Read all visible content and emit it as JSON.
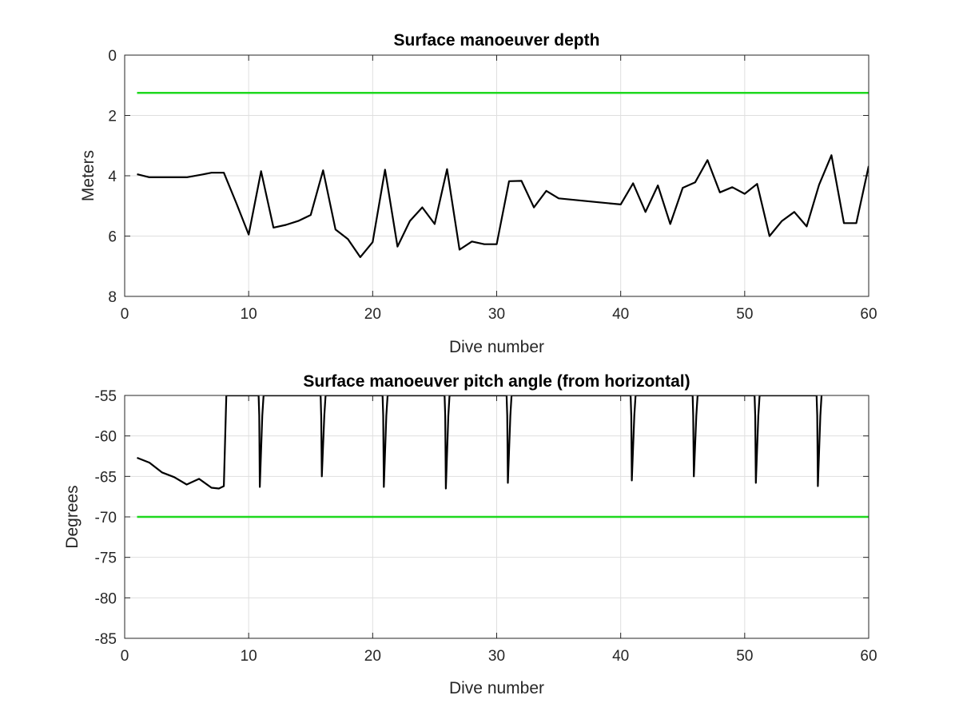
{
  "chart_data": [
    {
      "type": "line",
      "title": "Surface manoeuver depth",
      "xlabel": "Dive number",
      "ylabel": "Meters",
      "xlim": [
        0,
        60
      ],
      "ylim": [
        0,
        8
      ],
      "y_reversed": true,
      "xticks": [
        "0",
        "10",
        "20",
        "30",
        "40",
        "50",
        "60"
      ],
      "yticks": [
        "0",
        "2",
        "4",
        "6",
        "8"
      ],
      "grid": true,
      "series": [
        {
          "color": "#000000",
          "points": [
            [
              1,
              3.95
            ],
            [
              2,
              4.05
            ],
            [
              3,
              4.05
            ],
            [
              4,
              4.05
            ],
            [
              5,
              4.05
            ],
            [
              6,
              3.98
            ],
            [
              7,
              3.9
            ],
            [
              8,
              3.9
            ],
            [
              9,
              4.9
            ],
            [
              10,
              5.95
            ],
            [
              11,
              3.85
            ],
            [
              12,
              5.72
            ],
            [
              13,
              5.63
            ],
            [
              14,
              5.5
            ],
            [
              15,
              5.3
            ],
            [
              16,
              3.82
            ],
            [
              17,
              5.78
            ],
            [
              18,
              6.1
            ],
            [
              19,
              6.7
            ],
            [
              20,
              6.2
            ],
            [
              21,
              3.8
            ],
            [
              22,
              6.35
            ],
            [
              23,
              5.5
            ],
            [
              24,
              5.05
            ],
            [
              25,
              5.6
            ],
            [
              26,
              3.78
            ],
            [
              27,
              6.45
            ],
            [
              28,
              6.18
            ],
            [
              29,
              6.27
            ],
            [
              30,
              6.27
            ],
            [
              31,
              4.18
            ],
            [
              32,
              4.17
            ],
            [
              33,
              5.05
            ],
            [
              34,
              4.5
            ],
            [
              35,
              4.75
            ],
            [
              40,
              4.95
            ],
            [
              41,
              4.25
            ],
            [
              42,
              5.2
            ],
            [
              43,
              4.32
            ],
            [
              44,
              5.6
            ],
            [
              45,
              4.4
            ],
            [
              46,
              4.22
            ],
            [
              47,
              3.48
            ],
            [
              48,
              4.55
            ],
            [
              49,
              4.38
            ],
            [
              50,
              4.6
            ],
            [
              51,
              4.27
            ],
            [
              52,
              6.0
            ],
            [
              53,
              5.5
            ],
            [
              54,
              5.2
            ],
            [
              55,
              5.68
            ],
            [
              56,
              4.3
            ],
            [
              57,
              3.32
            ],
            [
              58,
              5.57
            ],
            [
              59,
              5.57
            ],
            [
              60,
              3.68
            ]
          ]
        },
        {
          "color": "#1ed81e",
          "points": [
            [
              1,
              1.25
            ],
            [
              60,
              1.25
            ]
          ]
        }
      ]
    },
    {
      "type": "line",
      "title": "Surface manoeuver pitch angle (from horizontal)",
      "xlabel": "Dive number",
      "ylabel": "Degrees",
      "xlim": [
        0,
        60
      ],
      "ylim": [
        -85,
        -55
      ],
      "xticks": [
        "0",
        "10",
        "20",
        "30",
        "40",
        "50",
        "60"
      ],
      "yticks": [
        "-55",
        "-60",
        "-65",
        "-70",
        "-75",
        "-80",
        "-85"
      ],
      "grid": true,
      "series": [
        {
          "color": "#000000",
          "points": [
            [
              1,
              -62.7
            ],
            [
              2,
              -63.3
            ],
            [
              3,
              -64.5
            ],
            [
              4,
              -65.1
            ],
            [
              5,
              -66
            ],
            [
              6,
              -65.3
            ],
            [
              7,
              -66.4
            ],
            [
              7.6,
              -66.5
            ],
            [
              8,
              -66.2
            ],
            [
              8.2,
              -55
            ],
            [
              10.8,
              -55
            ],
            [
              10.85,
              -57.5
            ],
            [
              10.9,
              -66.3
            ],
            [
              11.1,
              -57.5
            ],
            [
              11.2,
              -55
            ],
            [
              15.8,
              -55
            ],
            [
              15.85,
              -57.5
            ],
            [
              15.9,
              -65
            ],
            [
              16.1,
              -57.5
            ],
            [
              16.2,
              -55
            ],
            [
              20.8,
              -55
            ],
            [
              20.85,
              -57.5
            ],
            [
              20.9,
              -66.3
            ],
            [
              21.1,
              -57.5
            ],
            [
              21.2,
              -55
            ],
            [
              25.8,
              -55
            ],
            [
              25.85,
              -57.5
            ],
            [
              25.9,
              -66.5
            ],
            [
              26.1,
              -57.5
            ],
            [
              26.2,
              -55
            ],
            [
              30.8,
              -55
            ],
            [
              30.85,
              -57.5
            ],
            [
              30.9,
              -65.8
            ],
            [
              31.1,
              -57.5
            ],
            [
              31.2,
              -55
            ],
            [
              40.8,
              -55
            ],
            [
              40.85,
              -57.5
            ],
            [
              40.9,
              -65.5
            ],
            [
              41.1,
              -57.5
            ],
            [
              41.2,
              -55
            ],
            [
              45.8,
              -55
            ],
            [
              45.85,
              -57.5
            ],
            [
              45.9,
              -65
            ],
            [
              46.1,
              -57.5
            ],
            [
              46.2,
              -55
            ],
            [
              50.8,
              -55
            ],
            [
              50.85,
              -57.5
            ],
            [
              50.9,
              -65.8
            ],
            [
              51.1,
              -57.5
            ],
            [
              51.2,
              -55
            ],
            [
              55.8,
              -55
            ],
            [
              55.85,
              -57.5
            ],
            [
              55.9,
              -66.2
            ],
            [
              56.1,
              -57.5
            ],
            [
              56.2,
              -55
            ]
          ]
        },
        {
          "color": "#1ed81e",
          "points": [
            [
              1,
              -70
            ],
            [
              60,
              -70
            ]
          ]
        }
      ]
    }
  ]
}
